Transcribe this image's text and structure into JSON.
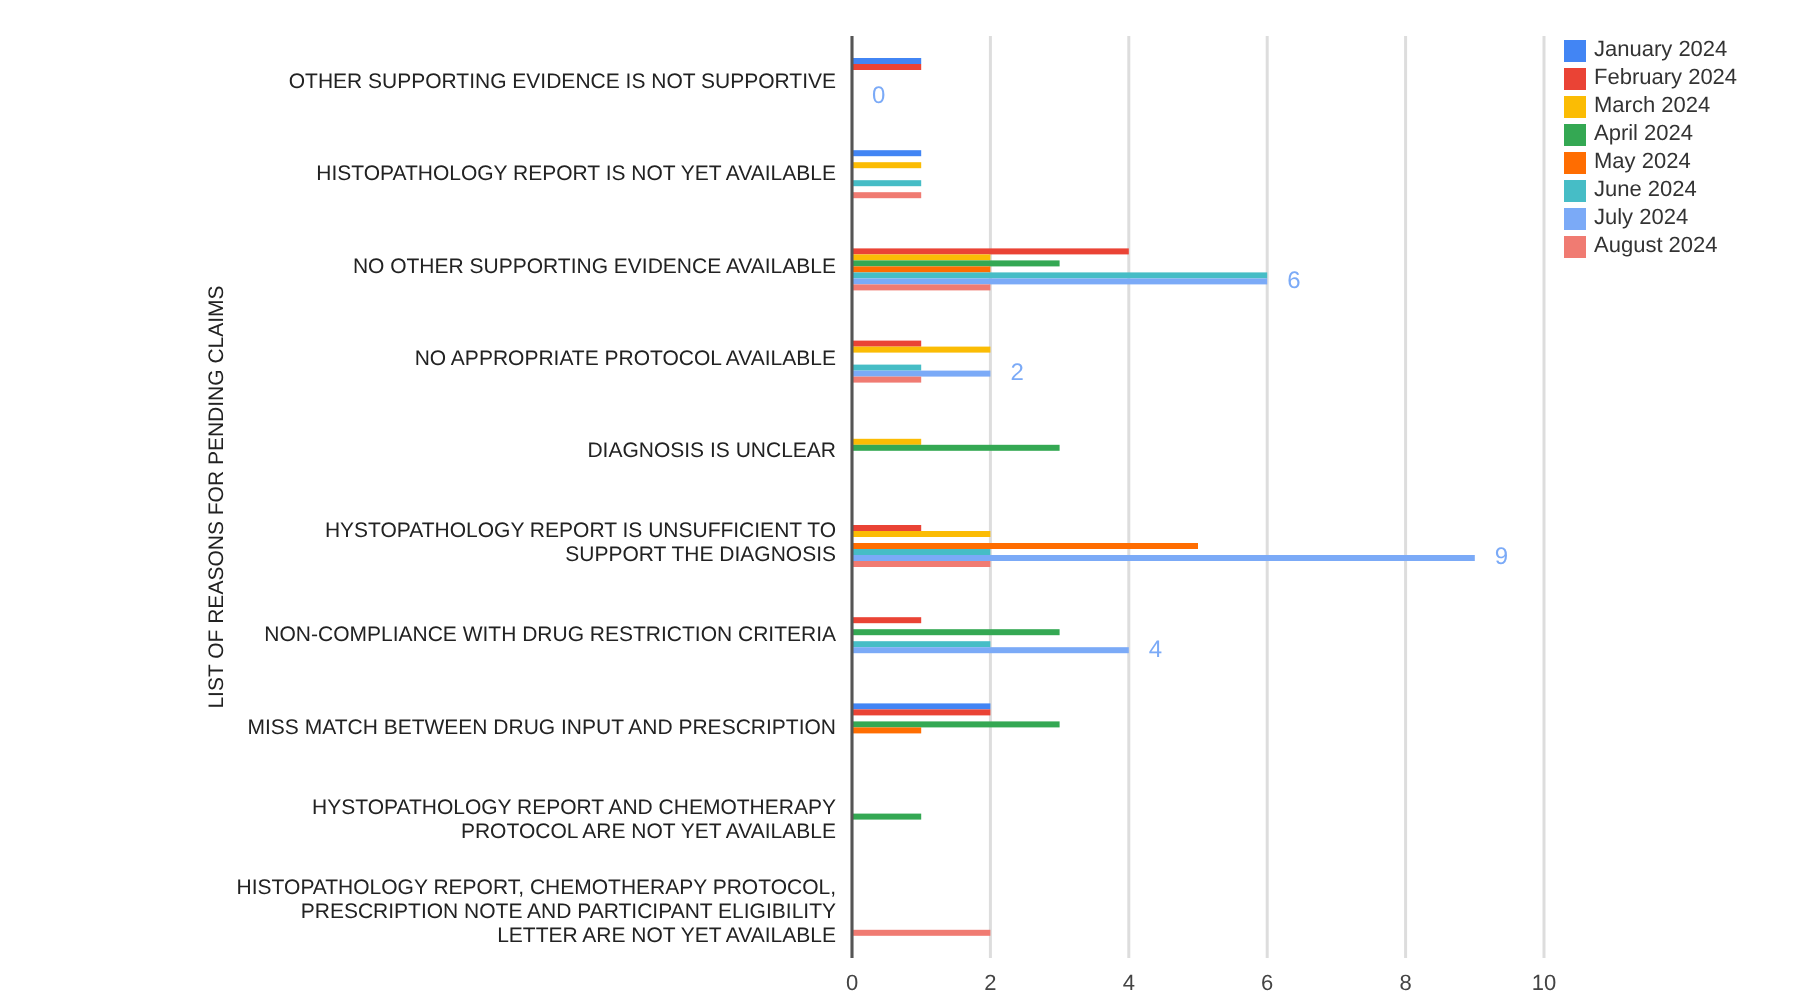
{
  "chart_data": {
    "type": "bar",
    "orientation": "horizontal",
    "ylabel": "LIST OF REASONS FOR PENDING CLAIMS",
    "categories": [
      "OTHER SUPPORTING EVIDENCE IS NOT SUPPORTIVE",
      "HISTOPATHOLOGY REPORT IS NOT YET AVAILABLE",
      "NO OTHER SUPPORTING EVIDENCE AVAILABLE",
      "NO APPROPRIATE PROTOCOL AVAILABLE",
      "DIAGNOSIS IS UNCLEAR",
      "HYSTOPATHOLOGY REPORT IS UNSUFFICIENT TO SUPPORT THE DIAGNOSIS",
      "NON-COMPLIANCE WITH DRUG RESTRICTION CRITERIA",
      "MISS MATCH BETWEEN DRUG INPUT AND PRESCRIPTION",
      "HYSTOPATHOLOGY REPORT AND CHEMOTHERAPY PROTOCOL ARE NOT YET AVAILABLE",
      "HISTOPATHOLOGY REPORT, CHEMOTHERAPY PROTOCOL, PRESCRIPTION NOTE AND PARTICIPANT ELIGIBILITY LETTER ARE NOT YET AVAILABLE"
    ],
    "series": [
      {
        "name": "January 2024",
        "color": "#4285f4",
        "values": [
          1,
          1,
          null,
          null,
          null,
          null,
          null,
          2,
          null,
          null
        ]
      },
      {
        "name": "February 2024",
        "color": "#ea4335",
        "values": [
          1,
          null,
          4,
          1,
          null,
          1,
          1,
          2,
          null,
          null
        ]
      },
      {
        "name": "March 2024",
        "color": "#fbbc04",
        "values": [
          null,
          1,
          2,
          2,
          1,
          2,
          null,
          null,
          null,
          null
        ]
      },
      {
        "name": "April 2024",
        "color": "#34a853",
        "values": [
          null,
          null,
          3,
          null,
          3,
          null,
          3,
          3,
          1,
          null
        ]
      },
      {
        "name": "May 2024",
        "color": "#ff6d01",
        "values": [
          null,
          null,
          2,
          null,
          null,
          5,
          null,
          1,
          null,
          null
        ]
      },
      {
        "name": "June 2024",
        "color": "#46bdc6",
        "values": [
          null,
          1,
          6,
          1,
          null,
          2,
          2,
          null,
          null,
          null
        ]
      },
      {
        "name": "July 2024",
        "color": "#7baaf7",
        "values": [
          0,
          null,
          6,
          2,
          null,
          9,
          4,
          null,
          null,
          null
        ],
        "value_labels": [
          "0",
          null,
          "6",
          "2",
          null,
          "9",
          "4",
          null,
          null,
          null
        ]
      },
      {
        "name": "August 2024",
        "color": "#f07b72",
        "values": [
          null,
          1,
          2,
          1,
          null,
          2,
          null,
          null,
          null,
          2
        ]
      }
    ],
    "xlim": [
      0,
      10
    ],
    "xticks": [
      0,
      2,
      4,
      6,
      8,
      10
    ],
    "grid": "x",
    "legend": "top right"
  }
}
